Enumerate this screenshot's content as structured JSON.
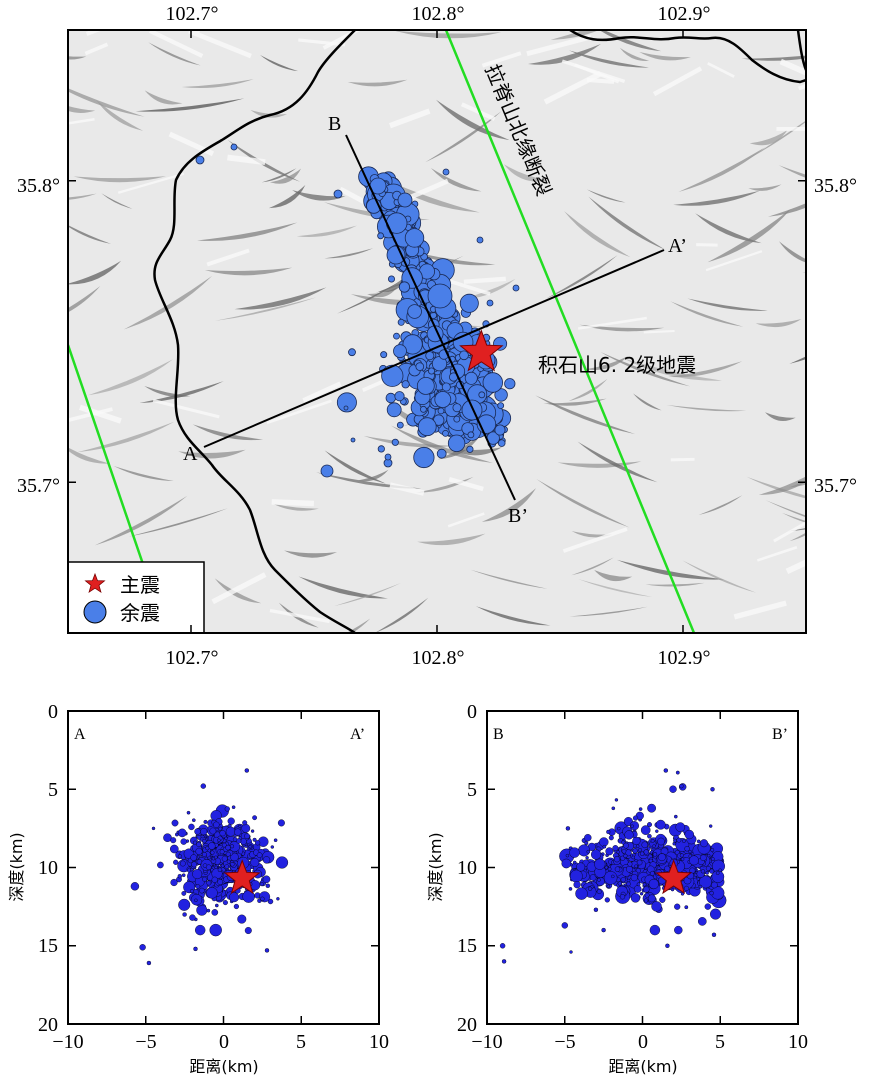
{
  "map": {
    "lon_range": [
      102.65,
      102.95
    ],
    "lat_range": [
      35.65,
      35.85
    ],
    "lon_ticks": [
      102.7,
      102.8,
      102.9
    ],
    "lat_ticks": [
      35.7,
      35.8
    ],
    "lon_tick_labels": [
      "102.7°",
      "102.8°",
      "102.9°"
    ],
    "lat_tick_labels": [
      "35.8°",
      "35.7°"
    ],
    "fault_label": "拉脊山北缘断裂",
    "event_label": "积石山6. 2级地震",
    "profile_A": {
      "start_label": "A",
      "end_label": "A’"
    },
    "profile_B": {
      "start_label": "B",
      "end_label": "B’"
    },
    "mainshock": {
      "lon": 102.818,
      "lat": 35.743
    },
    "legend": {
      "mainshock_label": "主震",
      "aftershock_label": "余震",
      "placement": "bottom-left"
    },
    "colors": {
      "fault": "#22dd22",
      "boundary": "#000000",
      "aftershock": "#4a7fe8",
      "mainshock": "#e02020"
    }
  },
  "profile_AA": {
    "corner_left": "A",
    "corner_right": "A’",
    "xlabel": "距离(km)",
    "ylabel": "深度(km)",
    "x_range": [
      -10,
      10
    ],
    "y_range": [
      0,
      20
    ],
    "x_ticks": [
      "−10",
      "−5",
      "0",
      "5",
      "10"
    ],
    "y_ticks": [
      "0",
      "5",
      "10",
      "15",
      "20"
    ],
    "mainshock": {
      "x": 1.2,
      "depth": 10.7
    }
  },
  "profile_BB": {
    "corner_left": "B",
    "corner_right": "B’",
    "xlabel": "距离(km)",
    "ylabel": "深度(km)",
    "x_range": [
      -10,
      10
    ],
    "y_range": [
      0,
      20
    ],
    "x_ticks": [
      "−10",
      "−5",
      "0",
      "5",
      "10"
    ],
    "y_ticks": [
      "0",
      "5",
      "10",
      "15",
      "20"
    ],
    "mainshock": {
      "x": 2.0,
      "depth": 10.7
    }
  }
}
